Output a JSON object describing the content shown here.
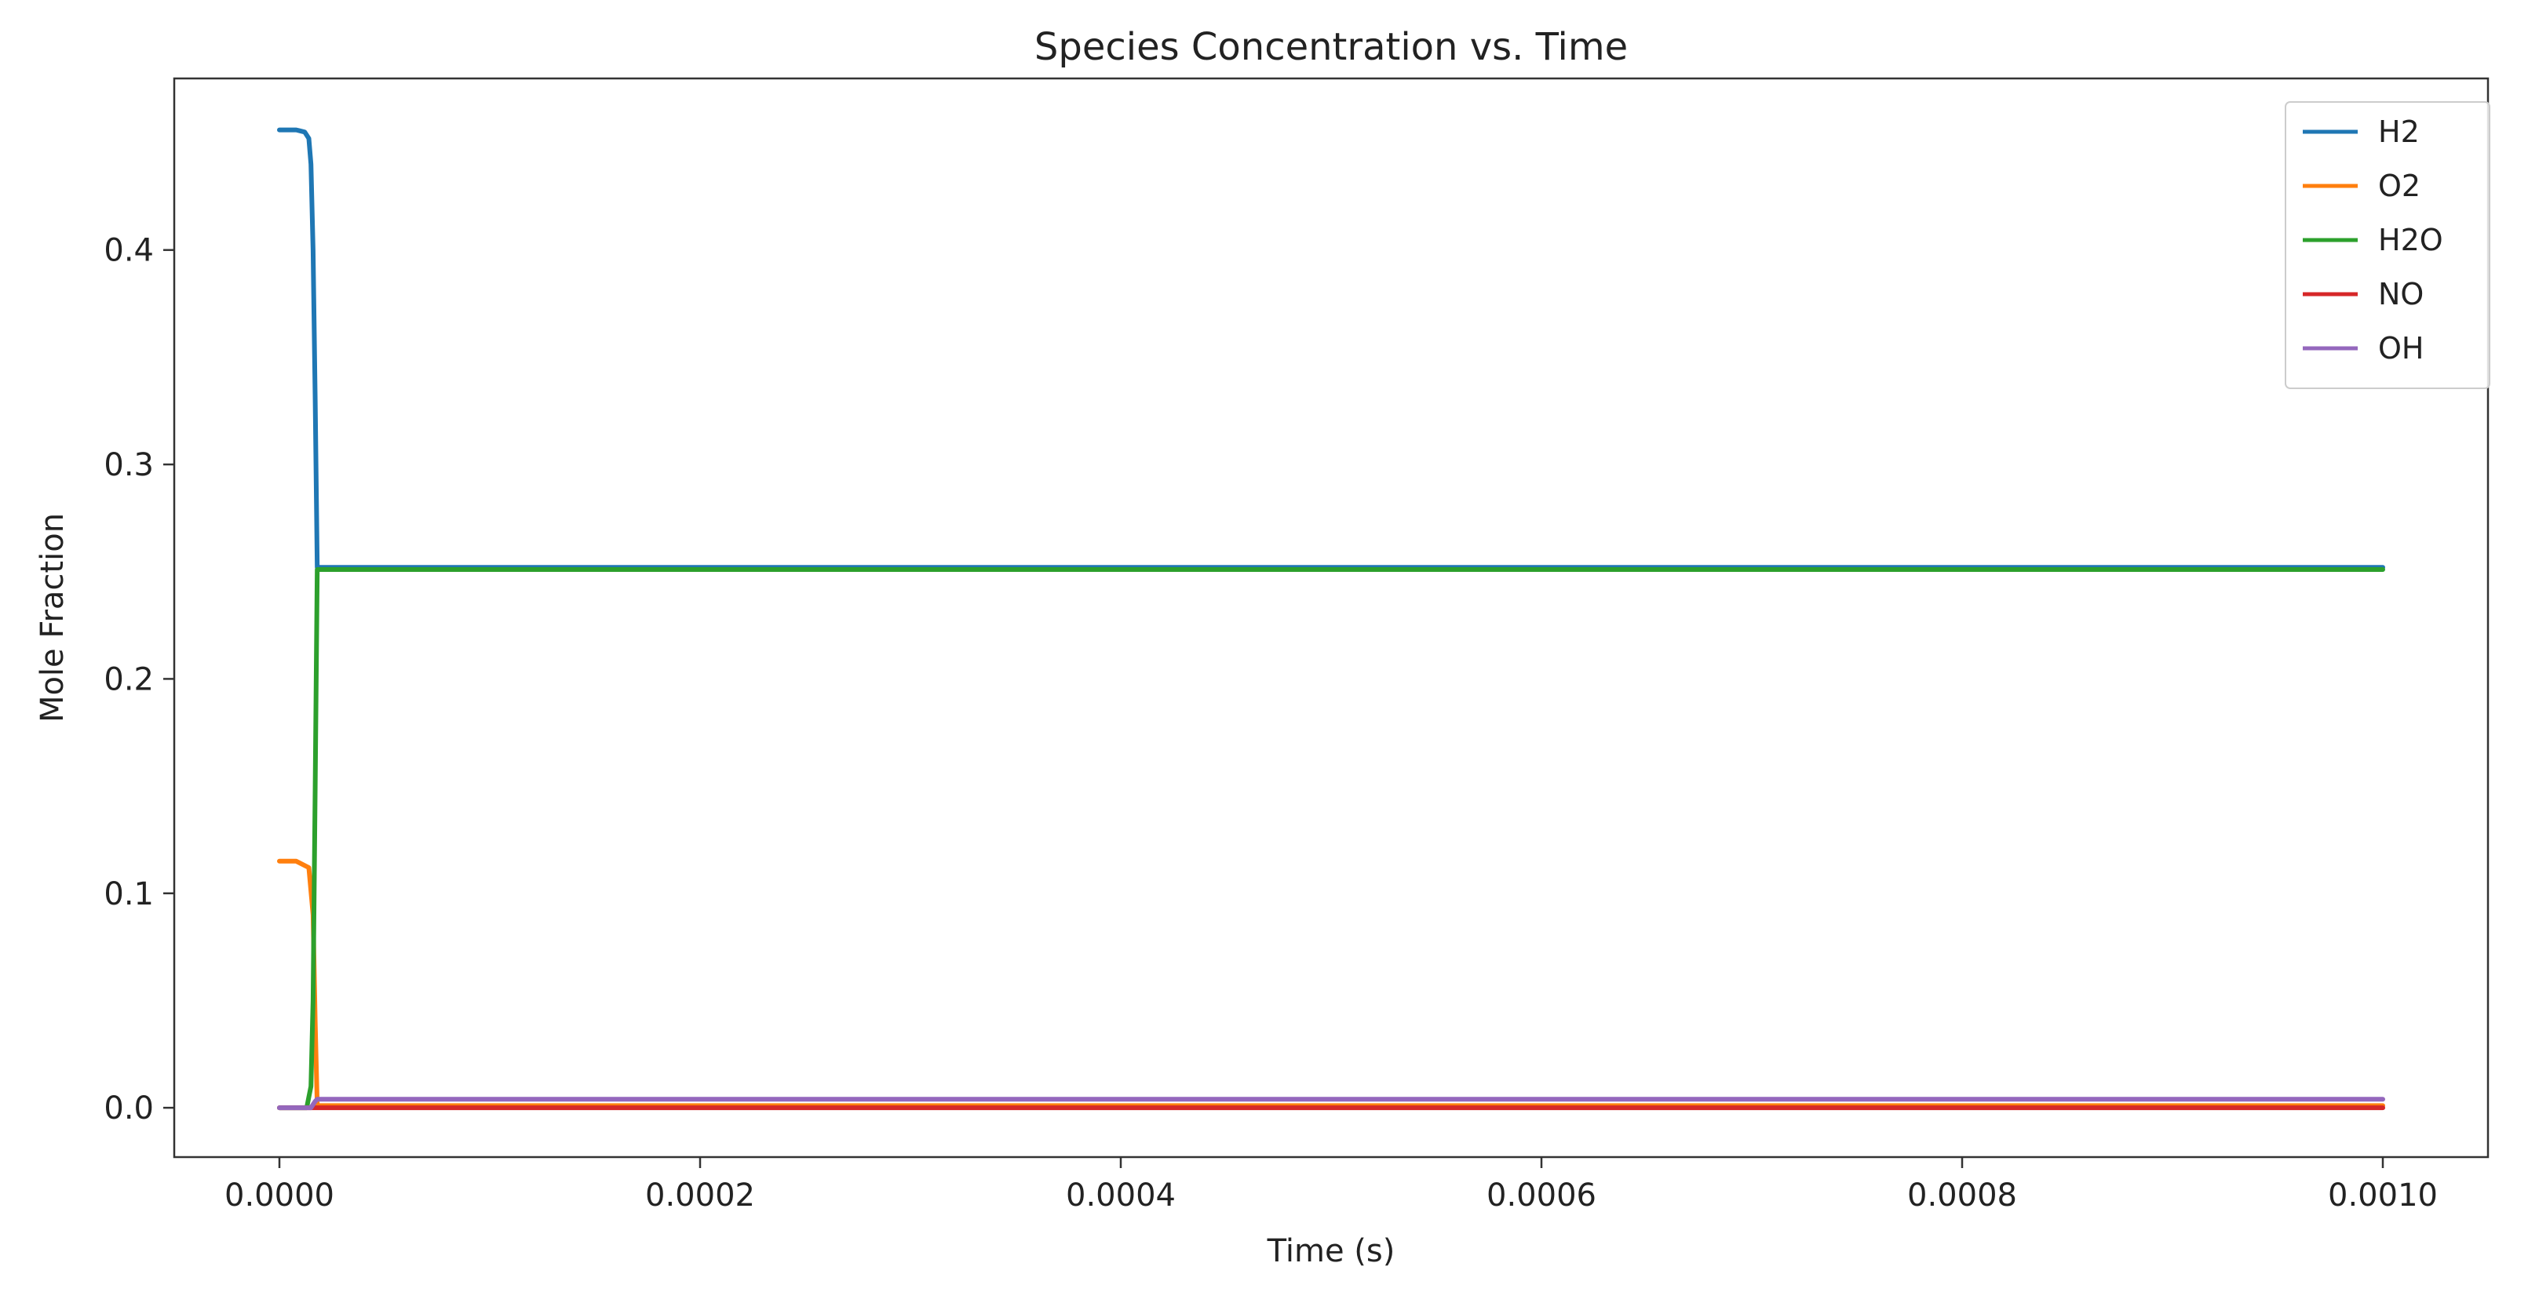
{
  "chart_data": {
    "type": "line",
    "title": "Species Concentration vs. Time",
    "xlabel": "Time (s)",
    "ylabel": "Mole Fraction",
    "xlim": [
      -5e-05,
      0.00105
    ],
    "ylim": [
      -0.023,
      0.48
    ],
    "x_ticks": [
      0.0,
      0.0002,
      0.0004,
      0.0006,
      0.0008,
      0.001
    ],
    "x_tick_labels": [
      "0.0000",
      "0.0002",
      "0.0004",
      "0.0006",
      "0.0008",
      "0.0010"
    ],
    "y_ticks": [
      0.0,
      0.1,
      0.2,
      0.3,
      0.4
    ],
    "y_tick_labels": [
      "0.0",
      "0.1",
      "0.2",
      "0.3",
      "0.4"
    ],
    "grid": false,
    "legend_position": "top-right",
    "series": [
      {
        "name": "H2",
        "color": "#1f77b4",
        "x": [
          0.0,
          8e-06,
          1.2e-05,
          1.4e-05,
          1.5e-05,
          1.6e-05,
          1.7e-05,
          1.8e-05,
          0.001
        ],
        "y": [
          0.456,
          0.456,
          0.455,
          0.452,
          0.44,
          0.4,
          0.33,
          0.252,
          0.252
        ]
      },
      {
        "name": "O2",
        "color": "#ff7f0e",
        "x": [
          0.0,
          8e-06,
          1.4e-05,
          1.6e-05,
          1.7e-05,
          1.8e-05,
          0.001
        ],
        "y": [
          0.115,
          0.115,
          0.112,
          0.09,
          0.04,
          0.001,
          0.001
        ]
      },
      {
        "name": "H2O",
        "color": "#2ca02c",
        "x": [
          0.0,
          1.3e-05,
          1.5e-05,
          1.6e-05,
          1.7e-05,
          1.8e-05,
          0.001
        ],
        "y": [
          0.0,
          0.0,
          0.01,
          0.05,
          0.15,
          0.251,
          0.251
        ]
      },
      {
        "name": "NO",
        "color": "#d62728",
        "x": [
          0.0,
          0.001
        ],
        "y": [
          0.0,
          0.0
        ]
      },
      {
        "name": "OH",
        "color": "#9467bd",
        "x": [
          0.0,
          1.5e-05,
          1.7e-05,
          1.8e-05,
          0.001
        ],
        "y": [
          0.0,
          0.0,
          0.003,
          0.004,
          0.004
        ]
      }
    ]
  }
}
